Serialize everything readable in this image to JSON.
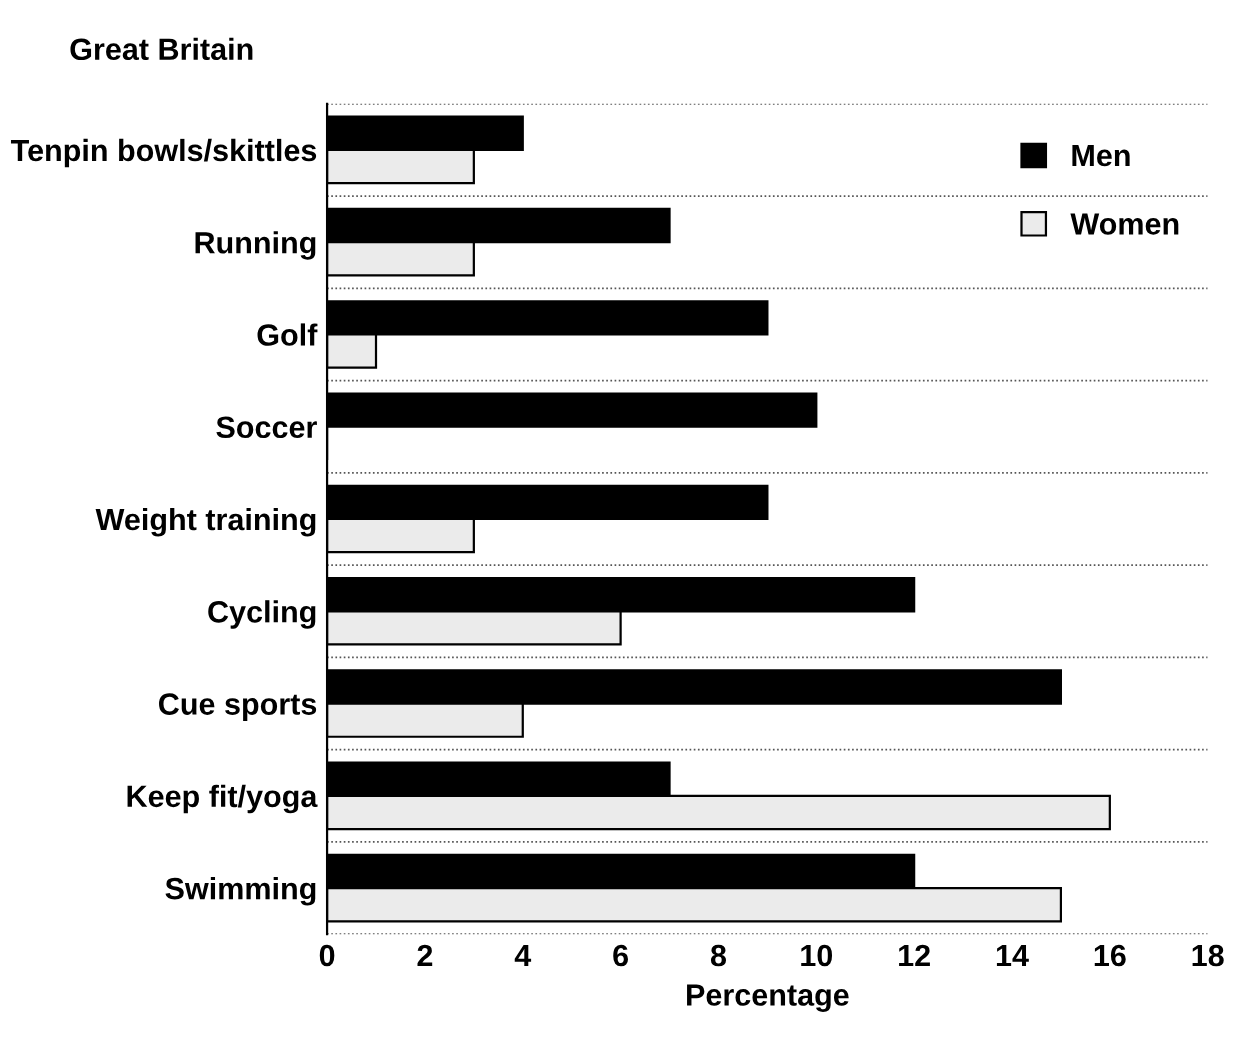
{
  "chart_data": {
    "type": "bar",
    "orientation": "horizontal",
    "title": "Great Britain",
    "xlabel": "Percentage",
    "categories": [
      "Tenpin bowls/skittles",
      "Running",
      "Golf",
      "Soccer",
      "Weight training",
      "Cycling",
      "Cue sports",
      "Keep fit/yoga",
      "Swimming"
    ],
    "series": [
      {
        "name": "Men",
        "color": "#000000",
        "values": [
          4,
          7,
          9,
          10,
          9,
          12,
          15,
          7,
          12
        ]
      },
      {
        "name": "Women",
        "color": "#ebebeb",
        "values": [
          3,
          3,
          1,
          0,
          3,
          6,
          4,
          16,
          15
        ]
      }
    ],
    "xlim": [
      0,
      18
    ],
    "xticks": [
      0,
      2,
      4,
      6,
      8,
      10,
      12,
      14,
      16,
      18
    ],
    "grid": "y",
    "legend": "top right"
  }
}
